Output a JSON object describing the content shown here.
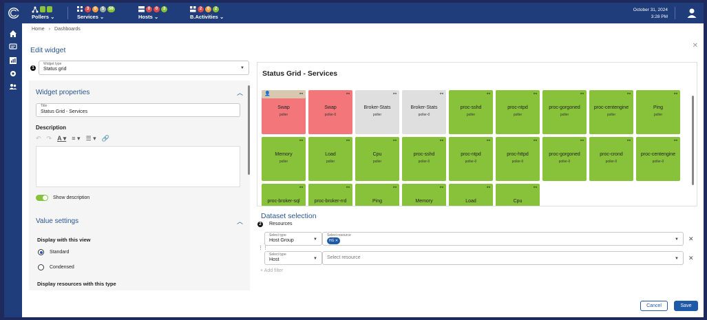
{
  "topbar": {
    "pollers": {
      "label": "Pollers"
    },
    "services": {
      "label": "Services",
      "counts": [
        "3",
        "0",
        "5",
        "56"
      ]
    },
    "hosts": {
      "label": "Hosts",
      "counts": [
        "0",
        "0",
        "3"
      ]
    },
    "activities": {
      "label": "B.Activities",
      "counts": [
        "2",
        "0",
        "2"
      ]
    },
    "date": "October 31, 2024",
    "time": "3:28 PM"
  },
  "breadcrumb": [
    "Home",
    "Dashboards"
  ],
  "page_title": "Edit widget",
  "widget_type": {
    "label": "Widget type",
    "value": "Status grid"
  },
  "widget_properties": {
    "heading": "Widget properties",
    "title_label": "Title",
    "title_value": "Status Grid - Services",
    "description_label": "Description",
    "show_description": "Show description"
  },
  "value_settings": {
    "heading": "Value settings",
    "display_view_label": "Display with this view",
    "options": [
      "Standard",
      "Condensed"
    ],
    "selected": "Standard",
    "display_resources_label": "Display resources with this type"
  },
  "preview": {
    "title": "Status Grid - Services",
    "tiles": [
      {
        "name": "Swap",
        "sub": "poller",
        "status": "crit",
        "ack": true
      },
      {
        "name": "Swap",
        "sub": "poller-0",
        "status": "crit",
        "ack": false
      },
      {
        "name": "Broker-Stats",
        "sub": "poller",
        "status": "unk",
        "ack": false
      },
      {
        "name": "Broker-Stats",
        "sub": "poller-0",
        "status": "unk",
        "ack": false
      },
      {
        "name": "proc-sshd",
        "sub": "poller",
        "status": "ok",
        "ack": false
      },
      {
        "name": "proc-ntpd",
        "sub": "poller",
        "status": "ok",
        "ack": false
      },
      {
        "name": "proc-gorgoned",
        "sub": "poller",
        "status": "ok",
        "ack": false
      },
      {
        "name": "proc-centengine",
        "sub": "poller",
        "status": "ok",
        "ack": false
      },
      {
        "name": "Ping",
        "sub": "poller",
        "status": "ok",
        "ack": false
      },
      {
        "name": "Memory",
        "sub": "poller",
        "status": "ok",
        "ack": false
      },
      {
        "name": "Load",
        "sub": "poller",
        "status": "ok",
        "ack": false
      },
      {
        "name": "Cpu",
        "sub": "poller",
        "status": "ok",
        "ack": false
      },
      {
        "name": "proc-sshd",
        "sub": "poller-0",
        "status": "ok",
        "ack": false
      },
      {
        "name": "proc-ntpd",
        "sub": "poller-0",
        "status": "ok",
        "ack": false
      },
      {
        "name": "proc-httpd",
        "sub": "poller-0",
        "status": "ok",
        "ack": false
      },
      {
        "name": "proc-gorgoned",
        "sub": "poller-0",
        "status": "ok",
        "ack": false
      },
      {
        "name": "proc-crond",
        "sub": "poller-0",
        "status": "ok",
        "ack": false
      },
      {
        "name": "proc-centengine",
        "sub": "poller-0",
        "status": "ok",
        "ack": false
      },
      {
        "name": "proc-broker-sql",
        "sub": "",
        "status": "ok",
        "ack": false
      },
      {
        "name": "proc-broker-rrd",
        "sub": "",
        "status": "ok",
        "ack": false
      },
      {
        "name": "Ping",
        "sub": "",
        "status": "ok",
        "ack": false
      },
      {
        "name": "Memory",
        "sub": "",
        "status": "ok",
        "ack": false
      },
      {
        "name": "Load",
        "sub": "",
        "status": "ok",
        "ack": false
      },
      {
        "name": "Cpu",
        "sub": "",
        "status": "ok",
        "ack": false
      }
    ]
  },
  "dataset": {
    "heading": "Dataset selection",
    "resources_label": "Resources",
    "filters": [
      {
        "type_label": "Select type",
        "type_value": "Host Group",
        "resource_label": "Select resource",
        "chip": "HG"
      },
      {
        "type_label": "Select type",
        "type_value": "Host",
        "resource_placeholder": "Select resource"
      }
    ],
    "add_filter": "Add filter"
  },
  "buttons": {
    "cancel": "Cancel",
    "save": "Save"
  },
  "colors": {
    "brand": "#1f3d7a",
    "ok": "#88c23a",
    "critical": "#f2767a",
    "unknown": "#dfdfdf"
  }
}
